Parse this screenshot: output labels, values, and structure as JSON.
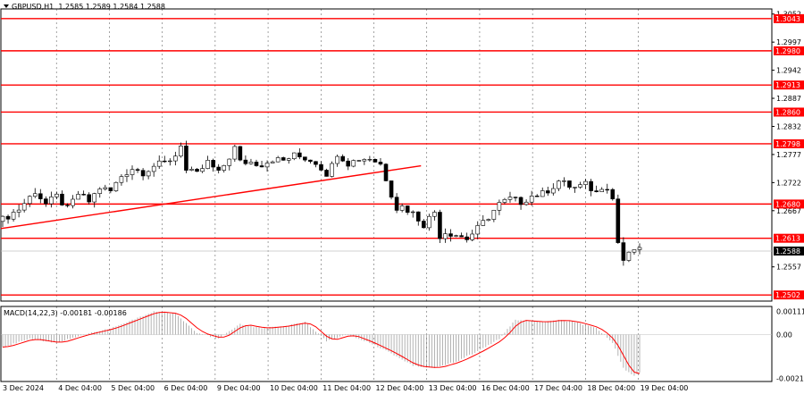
{
  "header": {
    "symbol_timeframe": "GBPUSD,H1",
    "ohlc": "1.2585 1.2589 1.2584 1.2588"
  },
  "macd": {
    "label": "MACD(14,22,3) -0.00181 -0.00186",
    "scale_labels": [
      "0.00111",
      "0.00",
      "-0.0021"
    ]
  },
  "colors": {
    "level_line": "#ff0000",
    "trendline": "#ff0000",
    "signal_line": "#ff0000",
    "candles": "#000000",
    "histogram": "#a0a0a0",
    "grid": "#000000",
    "price_tag_current": "#000000"
  },
  "chart_data": [
    {
      "type": "candlestick",
      "symbol": "GBPUSD",
      "timeframe": "H1",
      "y_ticks": [
        "1.3052",
        "1.2997",
        "1.2942",
        "1.2887",
        "1.2832",
        "1.2777",
        "1.2722",
        "1.2667",
        "1.2557"
      ],
      "ylim": [
        1.249,
        1.3062
      ],
      "x_ticks": [
        "3 Dec 2024",
        "4 Dec 04:00",
        "5 Dec 04:00",
        "6 Dec 04:00",
        "9 Dec 04:00",
        "10 Dec 04:00",
        "11 Dec 04:00",
        "12 Dec 04:00",
        "13 Dec 04:00",
        "16 Dec 04:00",
        "17 Dec 04:00",
        "18 Dec 04:00",
        "19 Dec 04:00"
      ],
      "levels": [
        1.3043,
        1.298,
        1.2913,
        1.286,
        1.2798,
        1.268,
        1.2613,
        1.2502
      ],
      "level_labels": [
        "1.3043",
        "1.2980",
        "1.2913",
        "1.2860",
        "1.2798",
        "1.2680",
        "1.2613",
        "1.2502"
      ],
      "current_price": 1.2588,
      "current_price_label": "1.2588",
      "trendline": {
        "from": [
          "3 Dec 2024",
          1.2632
        ],
        "to": [
          "12 Dec 16:00",
          1.2755
        ]
      },
      "close_path": [
        [
          0,
          1.265
        ],
        [
          3,
          1.267
        ],
        [
          6,
          1.2705
        ],
        [
          8,
          1.268
        ],
        [
          10,
          1.2695
        ],
        [
          12,
          1.267
        ],
        [
          14,
          1.27
        ],
        [
          16,
          1.2685
        ],
        [
          18,
          1.2712
        ],
        [
          20,
          1.2705
        ],
        [
          22,
          1.2735
        ],
        [
          24,
          1.275
        ],
        [
          26,
          1.2742
        ],
        [
          28,
          1.2755
        ],
        [
          30,
          1.276
        ],
        [
          32,
          1.2775
        ],
        [
          33,
          1.2798
        ],
        [
          34,
          1.2745
        ],
        [
          36,
          1.2738
        ],
        [
          38,
          1.2762
        ],
        [
          40,
          1.274
        ],
        [
          42,
          1.2772
        ],
        [
          43,
          1.279
        ],
        [
          44,
          1.2762
        ],
        [
          46,
          1.2762
        ],
        [
          48,
          1.2758
        ],
        [
          50,
          1.2768
        ],
        [
          52,
          1.2765
        ],
        [
          54,
          1.2775
        ],
        [
          56,
          1.277
        ],
        [
          58,
          1.2762
        ],
        [
          60,
          1.274
        ],
        [
          61,
          1.2755
        ],
        [
          62,
          1.278
        ],
        [
          64,
          1.276
        ],
        [
          66,
          1.2768
        ],
        [
          68,
          1.277
        ],
        [
          70,
          1.2758
        ],
        [
          71,
          1.273
        ],
        [
          72,
          1.27
        ],
        [
          73,
          1.2672
        ],
        [
          74,
          1.2675
        ],
        [
          76,
          1.2662
        ],
        [
          78,
          1.264
        ],
        [
          80,
          1.2665
        ],
        [
          81,
          1.2618
        ],
        [
          82,
          1.2625
        ],
        [
          84,
          1.262
        ],
        [
          86,
          1.2612
        ],
        [
          88,
          1.2632
        ],
        [
          90,
          1.2655
        ],
        [
          92,
          1.268
        ],
        [
          94,
          1.269
        ],
        [
          96,
          1.2684
        ],
        [
          98,
          1.2696
        ],
        [
          100,
          1.27
        ],
        [
          102,
          1.2715
        ],
        [
          103,
          1.2725
        ],
        [
          105,
          1.2715
        ],
        [
          106,
          1.2712
        ],
        [
          108,
          1.2718
        ],
        [
          110,
          1.2702
        ],
        [
          111,
          1.2715
        ],
        [
          112,
          1.2715
        ],
        [
          113,
          1.269
        ],
        [
          114,
          1.2605
        ],
        [
          115,
          1.257
        ],
        [
          116,
          1.258
        ],
        [
          117,
          1.2592
        ],
        [
          118,
          1.2588
        ]
      ]
    },
    {
      "type": "bar_and_line",
      "name": "MACD(14,22,3)",
      "histogram_last": -0.00181,
      "signal_last": -0.00186,
      "y_ticks": [
        "0.00111",
        "0.00",
        "-0.0021"
      ],
      "ylim": [
        -0.00225,
        0.00135
      ],
      "macd_path": [
        [
          0,
          -0.0006
        ],
        [
          5,
          -0.0002
        ],
        [
          10,
          -0.0004
        ],
        [
          15,
          0.0
        ],
        [
          20,
          0.0003
        ],
        [
          25,
          0.0008
        ],
        [
          28,
          0.0011
        ],
        [
          32,
          0.001
        ],
        [
          36,
          0.0001
        ],
        [
          40,
          -0.0002
        ],
        [
          44,
          0.0005
        ],
        [
          48,
          0.0003
        ],
        [
          52,
          0.0004
        ],
        [
          56,
          0.0006
        ],
        [
          60,
          -0.0003
        ],
        [
          64,
          0.0
        ],
        [
          68,
          -0.0004
        ],
        [
          72,
          -0.0009
        ],
        [
          76,
          -0.0015
        ],
        [
          80,
          -0.0016
        ],
        [
          84,
          -0.0013
        ],
        [
          88,
          -0.0008
        ],
        [
          92,
          -0.0002
        ],
        [
          95,
          0.0007
        ],
        [
          100,
          0.0006
        ],
        [
          103,
          0.0007
        ],
        [
          106,
          0.0006
        ],
        [
          110,
          0.0003
        ],
        [
          113,
          -0.0004
        ],
        [
          115,
          -0.0016
        ],
        [
          117,
          -0.002
        ],
        [
          118,
          -0.00181
        ]
      ]
    }
  ]
}
